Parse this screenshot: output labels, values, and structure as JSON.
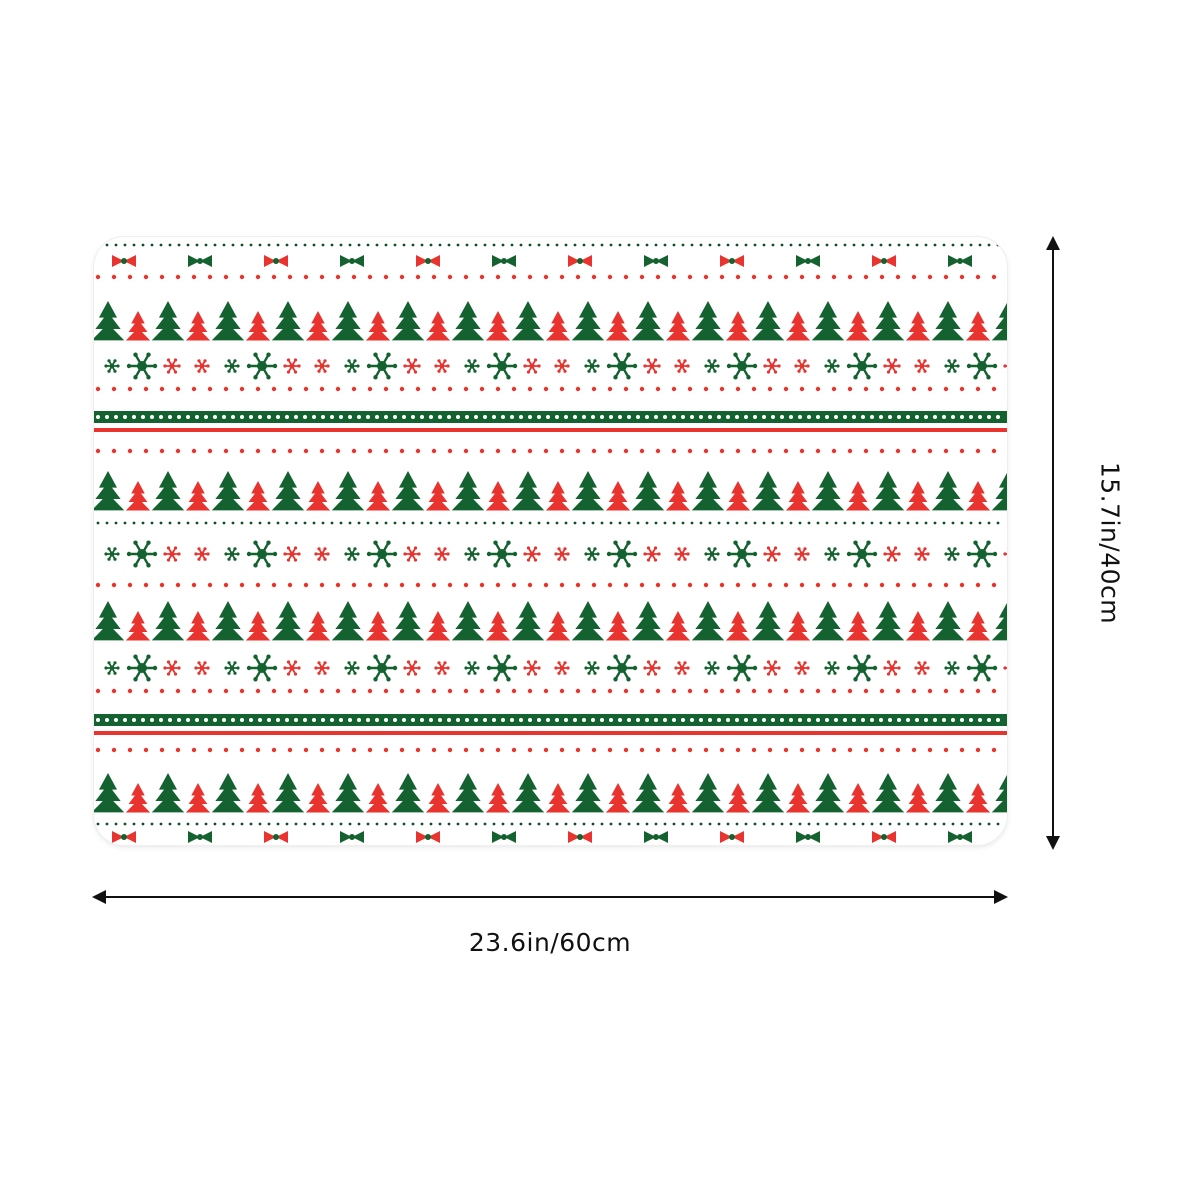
{
  "product": {
    "name": "christmas-pattern-mat",
    "pattern": {
      "motifs": [
        "tree",
        "snowflake",
        "dot-row",
        "bow-garland",
        "stripe-band"
      ],
      "colors": {
        "green": "#13622f",
        "red": "#e8332e",
        "background": "#ffffff",
        "dot_dark": "#0f4f28"
      }
    }
  },
  "dimensions": {
    "width_label": "23.6in/60cm",
    "height_label": "15.7in/40cm"
  },
  "icons": {
    "width_arrow": "double-arrow-horizontal",
    "height_arrow": "double-arrow-vertical"
  }
}
